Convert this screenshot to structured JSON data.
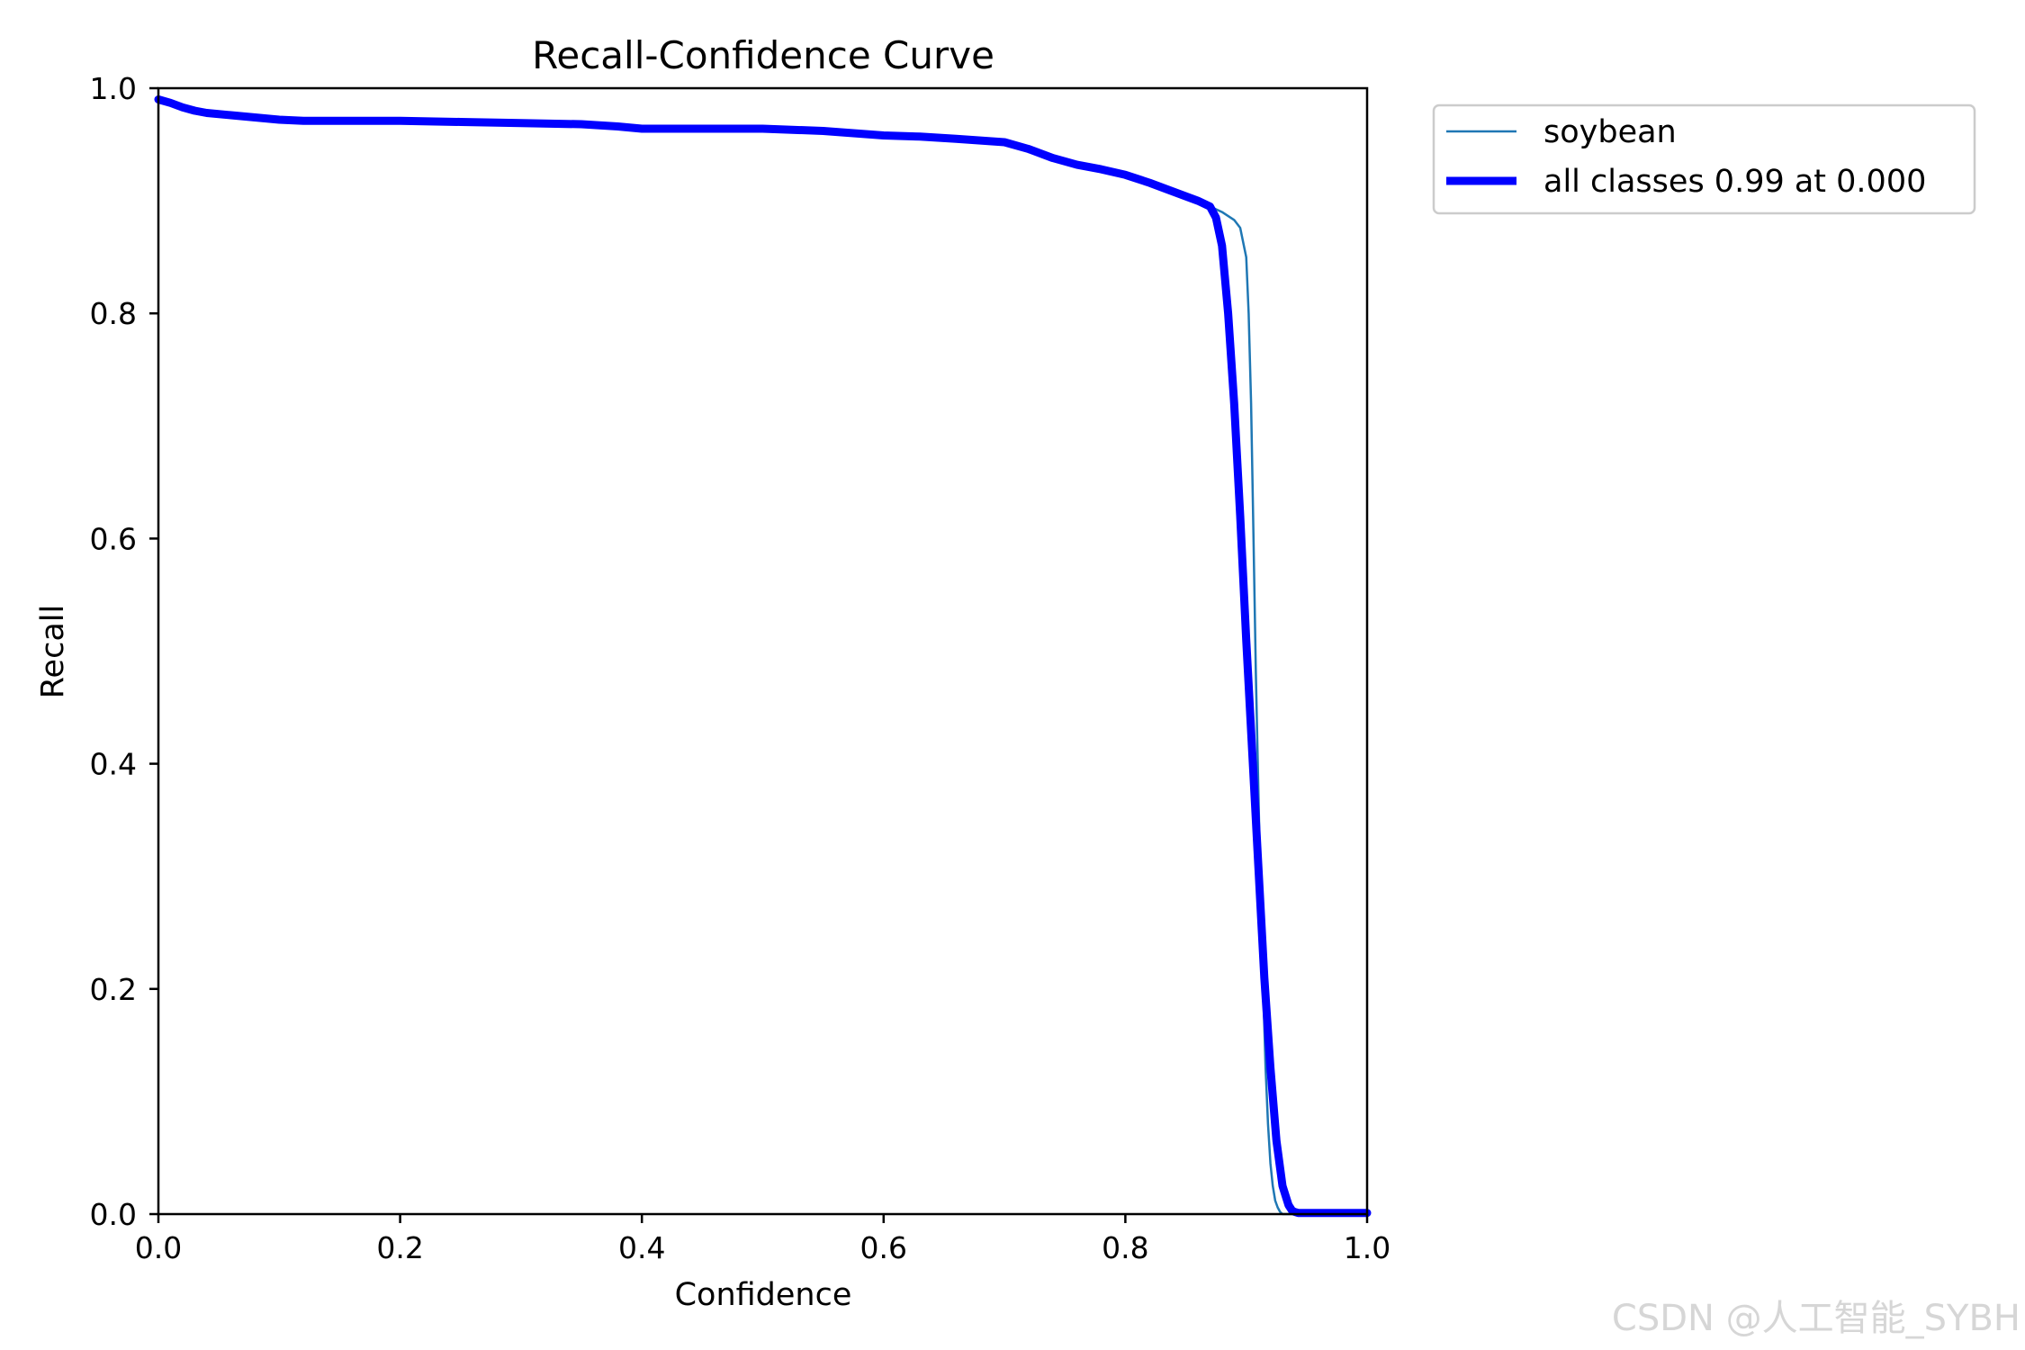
{
  "chart_data": {
    "type": "line",
    "title": "Recall-Confidence Curve",
    "xlabel": "Confidence",
    "ylabel": "Recall",
    "xlim": [
      0.0,
      1.0
    ],
    "ylim": [
      0.0,
      1.0
    ],
    "xticks": [
      "0.0",
      "0.2",
      "0.4",
      "0.6",
      "0.8",
      "1.0"
    ],
    "yticks": [
      "0.0",
      "0.2",
      "0.4",
      "0.6",
      "0.8",
      "1.0"
    ],
    "grid": false,
    "legend_position": "outside-top-right",
    "series": [
      {
        "name": "soybean",
        "color": "#1f77b4",
        "style": "thin",
        "x": [
          0.0,
          0.01,
          0.02,
          0.03,
          0.04,
          0.06,
          0.08,
          0.1,
          0.12,
          0.15,
          0.2,
          0.25,
          0.3,
          0.35,
          0.38,
          0.4,
          0.45,
          0.5,
          0.55,
          0.6,
          0.63,
          0.66,
          0.7,
          0.72,
          0.74,
          0.76,
          0.78,
          0.8,
          0.82,
          0.84,
          0.86,
          0.87,
          0.88,
          0.89,
          0.895,
          0.9,
          0.902,
          0.904,
          0.906,
          0.908,
          0.91,
          0.912,
          0.914,
          0.916,
          0.918,
          0.92,
          0.922,
          0.924,
          0.926,
          0.928,
          0.93,
          0.94,
          0.96,
          0.98,
          1.0
        ],
        "y": [
          0.99,
          0.987,
          0.983,
          0.98,
          0.978,
          0.976,
          0.974,
          0.972,
          0.971,
          0.971,
          0.971,
          0.97,
          0.969,
          0.968,
          0.966,
          0.964,
          0.964,
          0.964,
          0.962,
          0.958,
          0.957,
          0.955,
          0.952,
          0.946,
          0.938,
          0.932,
          0.928,
          0.923,
          0.916,
          0.908,
          0.9,
          0.895,
          0.89,
          0.883,
          0.876,
          0.85,
          0.8,
          0.72,
          0.6,
          0.48,
          0.38,
          0.28,
          0.2,
          0.13,
          0.08,
          0.045,
          0.025,
          0.012,
          0.006,
          0.002,
          0.0,
          0.0,
          0.0,
          0.0,
          0.0
        ]
      },
      {
        "name": "all classes 0.99 at 0.000",
        "color": "#0000ff",
        "style": "thick",
        "x": [
          0.0,
          0.01,
          0.02,
          0.03,
          0.04,
          0.06,
          0.08,
          0.1,
          0.12,
          0.15,
          0.2,
          0.25,
          0.3,
          0.35,
          0.38,
          0.4,
          0.45,
          0.5,
          0.55,
          0.6,
          0.63,
          0.66,
          0.7,
          0.72,
          0.74,
          0.76,
          0.78,
          0.8,
          0.82,
          0.84,
          0.86,
          0.87,
          0.875,
          0.88,
          0.885,
          0.89,
          0.895,
          0.9,
          0.905,
          0.91,
          0.915,
          0.92,
          0.925,
          0.93,
          0.935,
          0.938,
          0.94,
          0.943,
          0.946,
          0.95,
          0.96,
          0.98,
          1.0
        ],
        "y": [
          0.99,
          0.987,
          0.983,
          0.98,
          0.978,
          0.976,
          0.974,
          0.972,
          0.971,
          0.971,
          0.971,
          0.97,
          0.969,
          0.968,
          0.966,
          0.964,
          0.964,
          0.964,
          0.962,
          0.958,
          0.957,
          0.955,
          0.952,
          0.946,
          0.938,
          0.932,
          0.928,
          0.923,
          0.916,
          0.908,
          0.9,
          0.895,
          0.885,
          0.86,
          0.8,
          0.72,
          0.62,
          0.51,
          0.41,
          0.31,
          0.21,
          0.13,
          0.065,
          0.025,
          0.008,
          0.003,
          0.002,
          0.001,
          0.001,
          0.001,
          0.001,
          0.001,
          0.001
        ]
      }
    ],
    "watermark": "CSDN @人工智能_SYBH"
  }
}
